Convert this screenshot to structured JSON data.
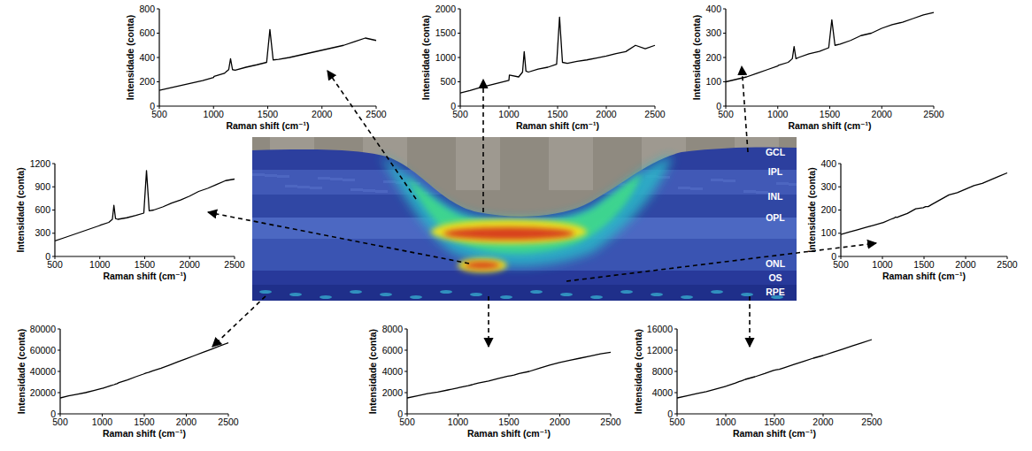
{
  "chart_data": [
    {
      "type": "line",
      "x_label": "Raman shift (cm⁻¹)",
      "y_label": "Intensidade (conta)",
      "x": [
        500,
        600,
        700,
        800,
        900,
        1000,
        1005,
        1100,
        1140,
        1157,
        1175,
        1200,
        1300,
        1400,
        1490,
        1520,
        1550,
        1600,
        1700,
        1800,
        1900,
        2000,
        2100,
        2200,
        2300,
        2400,
        2500
      ],
      "series": [
        {
          "color": "#000000",
          "values": [
            130,
            150,
            170,
            190,
            210,
            235,
            245,
            270,
            300,
            390,
            300,
            295,
            320,
            340,
            360,
            630,
            380,
            385,
            400,
            420,
            440,
            460,
            480,
            500,
            530,
            560,
            540
          ]
        }
      ],
      "xlim": [
        500,
        2500
      ],
      "xticks": [
        500,
        1000,
        1500,
        2000,
        2500
      ],
      "ylim": [
        0,
        800
      ],
      "yticks": [
        0,
        200,
        400,
        600,
        800
      ],
      "grid": false
    },
    {
      "type": "line",
      "x_label": "Raman shift (cm⁻¹)",
      "y_label": "Intensidade (conta)",
      "x": [
        500,
        600,
        700,
        800,
        900,
        1000,
        1005,
        1100,
        1140,
        1157,
        1175,
        1200,
        1300,
        1400,
        1490,
        1520,
        1550,
        1600,
        1700,
        1800,
        1900,
        2000,
        2100,
        2200,
        2300,
        2400,
        2500
      ],
      "series": [
        {
          "color": "#000000",
          "values": [
            270,
            320,
            380,
            430,
            480,
            530,
            640,
            600,
            700,
            1120,
            720,
            700,
            760,
            800,
            860,
            1830,
            900,
            880,
            920,
            950,
            990,
            1030,
            1080,
            1120,
            1250,
            1180,
            1250
          ]
        }
      ],
      "xlim": [
        500,
        2500
      ],
      "xticks": [
        500,
        1000,
        1500,
        2000,
        2500
      ],
      "ylim": [
        0,
        2000
      ],
      "yticks": [
        0,
        500,
        1000,
        1500,
        2000
      ],
      "grid": false
    },
    {
      "type": "line",
      "x_label": "Raman shift (cm⁻¹)",
      "y_label": "Intensidade (conta)",
      "x": [
        500,
        600,
        700,
        800,
        900,
        1000,
        1005,
        1100,
        1140,
        1157,
        1175,
        1200,
        1300,
        1400,
        1490,
        1520,
        1550,
        1600,
        1700,
        1800,
        1900,
        2000,
        2100,
        2200,
        2300,
        2400,
        2500
      ],
      "series": [
        {
          "color": "#000000",
          "values": [
            100,
            110,
            120,
            135,
            150,
            165,
            168,
            180,
            195,
            245,
            195,
            200,
            215,
            225,
            240,
            355,
            250,
            255,
            270,
            290,
            300,
            320,
            335,
            345,
            360,
            375,
            385
          ]
        }
      ],
      "xlim": [
        500,
        2500
      ],
      "xticks": [
        500,
        1000,
        1500,
        2000,
        2500
      ],
      "ylim": [
        0,
        400
      ],
      "yticks": [
        0,
        100,
        200,
        300,
        400
      ],
      "grid": false
    },
    {
      "type": "line",
      "x_label": "Raman shift (cm⁻¹)",
      "y_label": "Intensidade (conta)",
      "x": [
        500,
        600,
        700,
        800,
        900,
        1000,
        1005,
        1100,
        1140,
        1157,
        1175,
        1200,
        1300,
        1400,
        1490,
        1520,
        1550,
        1600,
        1700,
        1800,
        1900,
        2000,
        2100,
        2200,
        2300,
        2400,
        2500
      ],
      "series": [
        {
          "color": "#000000",
          "values": [
            200,
            240,
            280,
            320,
            360,
            400,
            405,
            440,
            480,
            660,
            490,
            480,
            500,
            530,
            560,
            1110,
            590,
            600,
            640,
            690,
            730,
            780,
            840,
            880,
            930,
            980,
            1000
          ]
        }
      ],
      "xlim": [
        500,
        2500
      ],
      "xticks": [
        500,
        1000,
        1500,
        2000,
        2500
      ],
      "ylim": [
        0,
        1200
      ],
      "yticks": [
        0,
        300,
        600,
        900,
        1200
      ],
      "grid": false
    },
    {
      "type": "line",
      "x_label": "Raman shift (cm⁻¹)",
      "y_label": "Intensidade (conta)",
      "x": [
        500,
        600,
        700,
        800,
        900,
        1000,
        1005,
        1100,
        1140,
        1157,
        1175,
        1200,
        1300,
        1400,
        1490,
        1520,
        1550,
        1600,
        1700,
        1800,
        1900,
        2000,
        2100,
        2200,
        2300,
        2400,
        2500
      ],
      "series": [
        {
          "color": "#000000",
          "values": [
            95,
            105,
            115,
            125,
            135,
            145,
            145,
            160,
            165,
            170,
            168,
            172,
            185,
            205,
            210,
            215,
            215,
            225,
            245,
            265,
            275,
            290,
            305,
            315,
            330,
            345,
            360
          ]
        }
      ],
      "xlim": [
        500,
        2500
      ],
      "xticks": [
        500,
        1000,
        1500,
        2000,
        2500
      ],
      "ylim": [
        0,
        400
      ],
      "yticks": [
        0,
        100,
        200,
        300,
        400
      ],
      "grid": false
    },
    {
      "type": "line",
      "x_label": "Raman shift (cm⁻¹)",
      "y_label": "Intensidade (conta)",
      "x": [
        500,
        600,
        700,
        800,
        900,
        1000,
        1005,
        1100,
        1140,
        1157,
        1175,
        1200,
        1300,
        1400,
        1490,
        1520,
        1550,
        1600,
        1700,
        1800,
        1900,
        2000,
        2100,
        2200,
        2300,
        2400,
        2500
      ],
      "series": [
        {
          "color": "#000000",
          "values": [
            15000,
            17000,
            18500,
            20000,
            22000,
            24000,
            24100,
            26500,
            27500,
            28000,
            28500,
            29500,
            32000,
            35000,
            37500,
            38500,
            39000,
            40500,
            43000,
            46000,
            49000,
            52000,
            55000,
            58000,
            61000,
            64000,
            67000
          ]
        }
      ],
      "xlim": [
        500,
        2500
      ],
      "xticks": [
        500,
        1000,
        1500,
        2000,
        2500
      ],
      "ylim": [
        0,
        80000
      ],
      "yticks": [
        0,
        20000,
        40000,
        60000,
        80000
      ],
      "grid": false
    },
    {
      "type": "line",
      "x_label": "Raman shift (cm⁻¹)",
      "y_label": "Intensidade (conta)",
      "x": [
        500,
        600,
        700,
        800,
        900,
        1000,
        1005,
        1100,
        1140,
        1157,
        1175,
        1200,
        1300,
        1400,
        1490,
        1520,
        1550,
        1600,
        1700,
        1800,
        1900,
        2000,
        2100,
        2200,
        2300,
        2400,
        2500
      ],
      "series": [
        {
          "color": "#000000",
          "values": [
            1500,
            1700,
            1900,
            2050,
            2250,
            2450,
            2460,
            2650,
            2750,
            2800,
            2850,
            2900,
            3100,
            3350,
            3550,
            3600,
            3650,
            3800,
            4000,
            4300,
            4600,
            4850,
            5050,
            5250,
            5450,
            5650,
            5800
          ]
        }
      ],
      "xlim": [
        500,
        2500
      ],
      "xticks": [
        500,
        1000,
        1500,
        2000,
        2500
      ],
      "ylim": [
        0,
        8000
      ],
      "yticks": [
        0,
        2000,
        4000,
        6000,
        8000
      ],
      "grid": false
    },
    {
      "type": "line",
      "x_label": "Raman shift (cm⁻¹)",
      "y_label": "Intensidade (conta)",
      "x": [
        500,
        600,
        700,
        800,
        900,
        1000,
        1005,
        1100,
        1140,
        1157,
        1175,
        1200,
        1300,
        1400,
        1490,
        1520,
        1550,
        1600,
        1700,
        1800,
        1900,
        2000,
        2100,
        2200,
        2300,
        2400,
        2500
      ],
      "series": [
        {
          "color": "#000000",
          "values": [
            3000,
            3400,
            3800,
            4200,
            4700,
            5200,
            5220,
            5800,
            6100,
            6200,
            6300,
            6500,
            7000,
            7600,
            8200,
            8300,
            8400,
            8700,
            9300,
            9900,
            10500,
            11000,
            11600,
            12200,
            12800,
            13400,
            14000
          ]
        }
      ],
      "xlim": [
        500,
        2500
      ],
      "xticks": [
        500,
        1000,
        1500,
        2000,
        2500
      ],
      "ylim": [
        0,
        16000
      ],
      "yticks": [
        0,
        4000,
        8000,
        12000,
        16000
      ],
      "grid": false
    }
  ],
  "image": {
    "layer_labels": [
      "GCL",
      "IPL",
      "INL",
      "OPL",
      "ONL",
      "OS",
      "RPE"
    ]
  }
}
